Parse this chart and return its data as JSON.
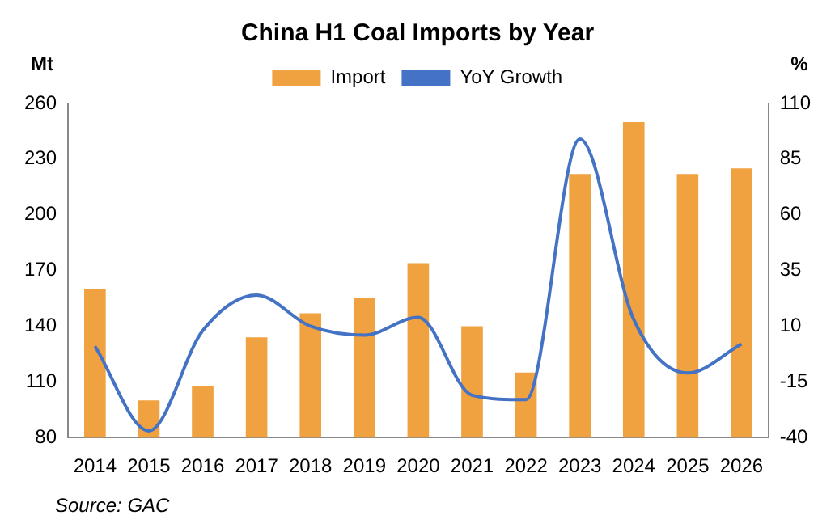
{
  "chart_data": {
    "type": "bar",
    "title": "China H1 Coal Imports by Year",
    "ylabel": "Mt",
    "y2label": "%",
    "categories": [
      "2014",
      "2015",
      "2016",
      "2017",
      "2018",
      "2019",
      "2020",
      "2021",
      "2022",
      "2023",
      "2024",
      "2025",
      "2026"
    ],
    "series": [
      {
        "name": "Import",
        "color": "#f0a140",
        "values": [
          160,
          100,
          108,
          134,
          147,
          155,
          174,
          140,
          115,
          222,
          250,
          222,
          225
        ]
      },
      {
        "name": "YoY Growth",
        "type": "line",
        "axis": "y2",
        "color": "#4472c4",
        "values": [
          1,
          -37,
          8,
          24,
          10,
          6,
          14,
          -21,
          -23,
          94,
          13,
          -11,
          2
        ]
      }
    ],
    "ylim": [
      80,
      260
    ],
    "yticks": [
      80,
      110,
      140,
      170,
      200,
      230,
      260
    ],
    "y2lim": [
      -40,
      110
    ],
    "y2ticks": [
      -40,
      -15,
      10,
      35,
      60,
      85,
      110
    ],
    "legend": "top",
    "grid": false,
    "marker": "none",
    "annotations": [
      "Source: GAC"
    ]
  }
}
